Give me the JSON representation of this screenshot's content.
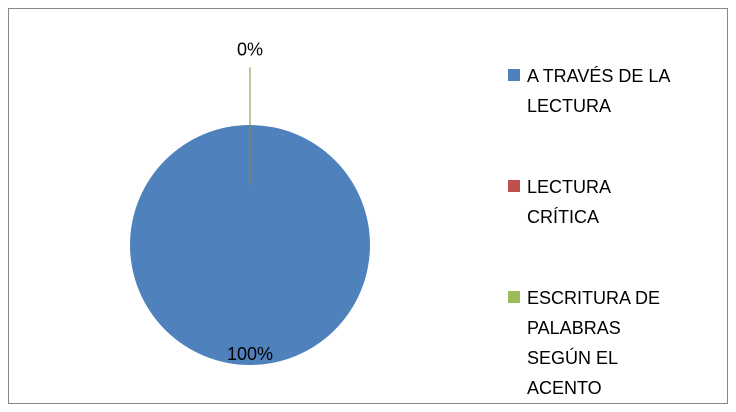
{
  "chart_data": {
    "type": "pie",
    "categories": [
      "A TRAVÉS DE LA LECTURA",
      "LECTURA CRÍTICA",
      "ESCRITURA DE PALABRAS SEGÚN EL ACENTO"
    ],
    "values": [
      100,
      0,
      0
    ],
    "value_labels": [
      "100%",
      null,
      "0%"
    ],
    "colors": [
      "#4f81bd",
      "#c0504d",
      "#9bbb59"
    ],
    "legend": "right"
  }
}
